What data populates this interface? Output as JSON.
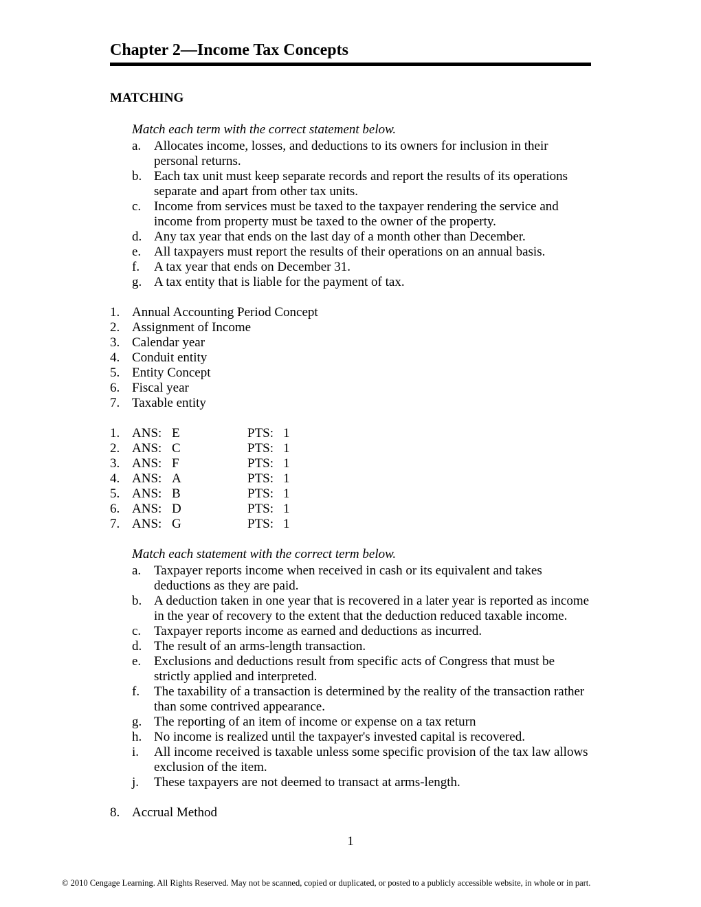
{
  "chapter_title": "Chapter 2—Income Tax Concepts",
  "section_heading": "MATCHING",
  "instruction1": "Match each term with the correct statement below.",
  "defs1": [
    {
      "l": "a.",
      "t": "Allocates income, losses, and deductions to its owners for inclusion in their personal returns."
    },
    {
      "l": "b.",
      "t": "Each tax unit must keep separate records and report the results of its operations separate and apart from other tax units."
    },
    {
      "l": "c.",
      "t": "Income from services must be taxed to the taxpayer rendering the service and income from property must be taxed to the owner of the property."
    },
    {
      "l": "d.",
      "t": "Any tax year that ends on the last day of a month other than December."
    },
    {
      "l": "e.",
      "t": "All taxpayers must report the results of their operations on an annual basis."
    },
    {
      "l": "f.",
      "t": "A tax year that ends on December 31."
    },
    {
      "l": "g.",
      "t": "A tax entity that is liable for the payment of tax."
    }
  ],
  "terms1": [
    {
      "n": "1.",
      "t": "Annual Accounting Period Concept"
    },
    {
      "n": "2.",
      "t": "Assignment of Income"
    },
    {
      "n": "3.",
      "t": "Calendar year"
    },
    {
      "n": "4.",
      "t": "Conduit entity"
    },
    {
      "n": "5.",
      "t": "Entity Concept"
    },
    {
      "n": "6.",
      "t": "Fiscal year"
    },
    {
      "n": "7.",
      "t": "Taxable entity"
    }
  ],
  "ans_label": "ANS:",
  "pts_label": "PTS:",
  "answers1": [
    {
      "n": "1.",
      "a": "E",
      "p": "1"
    },
    {
      "n": "2.",
      "a": "C",
      "p": "1"
    },
    {
      "n": "3.",
      "a": "F",
      "p": "1"
    },
    {
      "n": "4.",
      "a": "A",
      "p": "1"
    },
    {
      "n": "5.",
      "a": "B",
      "p": "1"
    },
    {
      "n": "6.",
      "a": "D",
      "p": "1"
    },
    {
      "n": "7.",
      "a": "G",
      "p": "1"
    }
  ],
  "instruction2": "Match each statement with the correct term below.",
  "defs2": [
    {
      "l": "a.",
      "t": "Taxpayer reports income when received in cash or its equivalent and takes deductions as they are paid."
    },
    {
      "l": "b.",
      "t": "A deduction taken in one year that is recovered in a later year is reported as income in the year of recovery to the extent that the deduction reduced taxable income."
    },
    {
      "l": "c.",
      "t": "Taxpayer reports income as earned and deductions as incurred."
    },
    {
      "l": "d.",
      "t": "The result of an arms-length transaction."
    },
    {
      "l": "e.",
      "t": "Exclusions and deductions result from specific acts of Congress that must be strictly applied and interpreted."
    },
    {
      "l": "f.",
      "t": "The taxability of a transaction is determined by the reality of the transaction rather than some contrived appearance."
    },
    {
      "l": "g.",
      "t": "The reporting of an item of income or expense on a tax return"
    },
    {
      "l": "h.",
      "t": "No income is realized until the taxpayer's invested capital is recovered."
    },
    {
      "l": "i.",
      "t": "All income received is taxable unless some specific provision of the tax law allows exclusion of the item."
    },
    {
      "l": "j.",
      "t": "These taxpayers are not deemed to transact at arms-length."
    }
  ],
  "last_term": {
    "n": "8.",
    "t": "Accrual Method"
  },
  "page_number": "1",
  "copyright": "© 2010 Cengage Learning. All Rights Reserved. May not be scanned, copied or duplicated, or posted to a publicly accessible website, in whole or in part."
}
